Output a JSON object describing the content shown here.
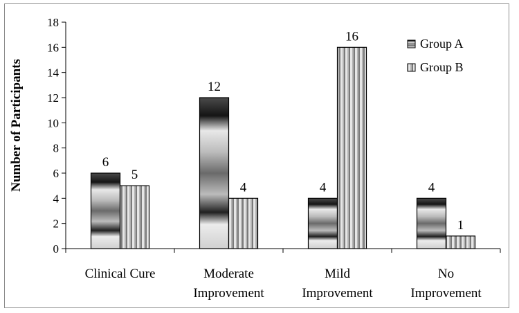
{
  "chart_data": {
    "type": "bar",
    "title": "",
    "xlabel": "",
    "ylabel": "Number of Participants",
    "ylim": [
      0,
      18
    ],
    "yticks": [
      0,
      2,
      4,
      6,
      8,
      10,
      12,
      14,
      16,
      18
    ],
    "categories": [
      [
        "Clinical Cure"
      ],
      [
        "Moderate",
        "Improvement"
      ],
      [
        "Mild",
        "Improvement"
      ],
      [
        "No",
        "Improvement"
      ]
    ],
    "series": [
      {
        "name": "Group A",
        "values": [
          6,
          12,
          4,
          4
        ],
        "pattern": "horizontal-gradient"
      },
      {
        "name": "Group B",
        "values": [
          5,
          4,
          16,
          1
        ],
        "pattern": "vertical-stripes"
      }
    ],
    "legend_position": "top-right",
    "grid": false,
    "data_labels": true
  }
}
